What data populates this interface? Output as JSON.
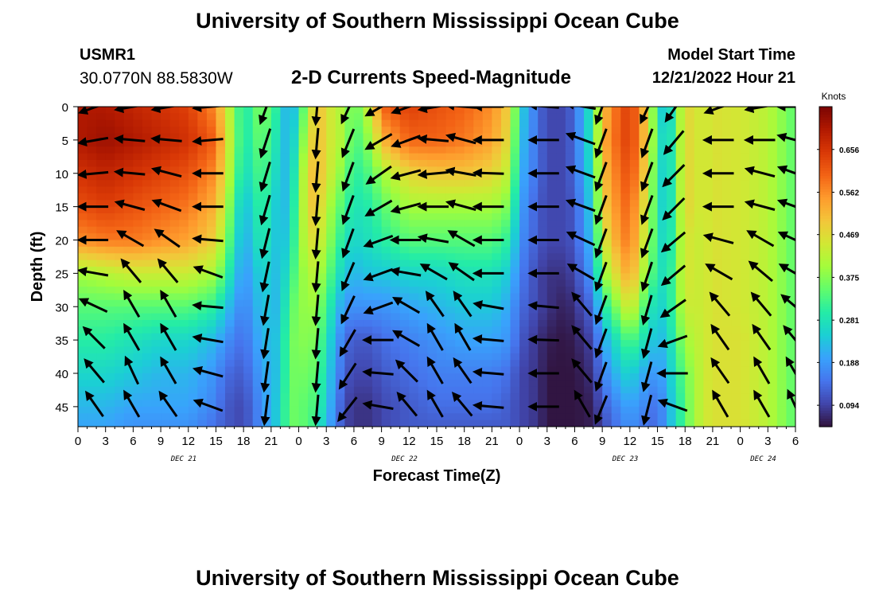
{
  "header": {
    "title": "University of Southern Mississippi Ocean Cube",
    "station": "USMR1",
    "coordinates": "30.0770N  88.5830W",
    "subtitle": "2-D Currents Speed-Magnitude",
    "model_start_label": "Model Start Time",
    "model_start_value": "12/21/2022 Hour 21"
  },
  "footer": {
    "title": "University of Southern Mississippi Ocean Cube"
  },
  "chart_data": {
    "type": "heatmap",
    "xlabel": "Forecast Time(Z)",
    "ylabel": "Depth (ft)",
    "x_ticks": [
      "0",
      "3",
      "6",
      "9",
      "12",
      "15",
      "18",
      "21",
      "0",
      "3",
      "6",
      "9",
      "12",
      "15",
      "18",
      "21",
      "0",
      "3",
      "6",
      "9",
      "12",
      "15",
      "18",
      "21",
      "0",
      "3",
      "6"
    ],
    "x_tick_hours": [
      0,
      3,
      6,
      9,
      12,
      15,
      18,
      21,
      24,
      27,
      30,
      33,
      36,
      39,
      42,
      45,
      48,
      51,
      54,
      57,
      60,
      63,
      66,
      69,
      72,
      75,
      78
    ],
    "xlim_hours": [
      0,
      78
    ],
    "date_labels": [
      {
        "label": "DEC 21",
        "hour": 11.5
      },
      {
        "label": "DEC 22",
        "hour": 35.5
      },
      {
        "label": "DEC 23",
        "hour": 59.5
      },
      {
        "label": "DEC 24",
        "hour": 74.5
      }
    ],
    "y_ticks": [
      0,
      5,
      10,
      15,
      20,
      25,
      30,
      35,
      40,
      45
    ],
    "ylim": [
      0,
      48
    ],
    "y_inverted": true,
    "colorbar": {
      "title": "Knots",
      "range": [
        0.047,
        0.75
      ],
      "ticks": [
        0.094,
        0.188,
        0.281,
        0.375,
        0.469,
        0.562,
        0.656
      ],
      "tick_labels": [
        "0.094",
        "0.188",
        "0.281",
        "0.375",
        "0.469",
        "0.562",
        "0.656"
      ]
    },
    "colormap": [
      "#30123b",
      "#4145ab",
      "#4675ed",
      "#39a2fc",
      "#1bcfd4",
      "#24eca6",
      "#61fc6c",
      "#a4fc3b",
      "#d1e834",
      "#f3c63a",
      "#fe9b2d",
      "#f36315",
      "#d93806",
      "#b11901",
      "#7a0403"
    ],
    "speed_field": {
      "hours": [
        0,
        3,
        6,
        9,
        12,
        15,
        16,
        18,
        20,
        22,
        23,
        25,
        26,
        27,
        29,
        30,
        32,
        33,
        36,
        39,
        42,
        45,
        47,
        48,
        50,
        51,
        53,
        54,
        56,
        57,
        59,
        60,
        61,
        62,
        63,
        64,
        66,
        67,
        68,
        69,
        72,
        75,
        78
      ],
      "depths": [
        0,
        5,
        10,
        15,
        20,
        25,
        30,
        35,
        40,
        45,
        48
      ],
      "values": [
        [
          0.7,
          0.7,
          0.68,
          0.66,
          0.64,
          0.56,
          0.46,
          0.28,
          0.38,
          0.28,
          0.18,
          0.4,
          0.52,
          0.46,
          0.4,
          0.34,
          0.46,
          0.6,
          0.64,
          0.62,
          0.6,
          0.56,
          0.48,
          0.26,
          0.14,
          0.1,
          0.1,
          0.14,
          0.3,
          0.5,
          0.62,
          0.64,
          0.58,
          0.46,
          0.3,
          0.2,
          0.48,
          0.46,
          0.44,
          0.46,
          0.45,
          0.42,
          0.34
        ],
        [
          0.7,
          0.72,
          0.7,
          0.68,
          0.66,
          0.6,
          0.48,
          0.28,
          0.36,
          0.26,
          0.2,
          0.44,
          0.52,
          0.46,
          0.4,
          0.32,
          0.4,
          0.52,
          0.6,
          0.6,
          0.58,
          0.54,
          0.46,
          0.24,
          0.14,
          0.1,
          0.1,
          0.14,
          0.3,
          0.52,
          0.62,
          0.64,
          0.58,
          0.46,
          0.32,
          0.22,
          0.48,
          0.46,
          0.44,
          0.46,
          0.45,
          0.42,
          0.34
        ],
        [
          0.66,
          0.68,
          0.66,
          0.64,
          0.62,
          0.56,
          0.46,
          0.26,
          0.34,
          0.24,
          0.22,
          0.48,
          0.52,
          0.46,
          0.36,
          0.3,
          0.34,
          0.4,
          0.48,
          0.5,
          0.5,
          0.48,
          0.42,
          0.22,
          0.14,
          0.1,
          0.1,
          0.14,
          0.28,
          0.5,
          0.6,
          0.62,
          0.56,
          0.44,
          0.3,
          0.22,
          0.48,
          0.46,
          0.44,
          0.46,
          0.45,
          0.42,
          0.34
        ],
        [
          0.62,
          0.64,
          0.62,
          0.6,
          0.58,
          0.52,
          0.42,
          0.22,
          0.32,
          0.22,
          0.24,
          0.48,
          0.5,
          0.42,
          0.32,
          0.28,
          0.3,
          0.34,
          0.4,
          0.4,
          0.4,
          0.4,
          0.36,
          0.2,
          0.12,
          0.1,
          0.1,
          0.12,
          0.26,
          0.48,
          0.58,
          0.6,
          0.52,
          0.42,
          0.3,
          0.22,
          0.48,
          0.46,
          0.44,
          0.46,
          0.45,
          0.42,
          0.34
        ],
        [
          0.56,
          0.58,
          0.58,
          0.56,
          0.54,
          0.48,
          0.38,
          0.2,
          0.3,
          0.22,
          0.26,
          0.46,
          0.46,
          0.4,
          0.28,
          0.26,
          0.28,
          0.3,
          0.34,
          0.34,
          0.34,
          0.34,
          0.3,
          0.18,
          0.12,
          0.1,
          0.1,
          0.12,
          0.24,
          0.44,
          0.56,
          0.58,
          0.5,
          0.4,
          0.3,
          0.24,
          0.46,
          0.44,
          0.44,
          0.46,
          0.45,
          0.42,
          0.34
        ],
        [
          0.4,
          0.42,
          0.44,
          0.44,
          0.44,
          0.4,
          0.32,
          0.18,
          0.26,
          0.22,
          0.3,
          0.42,
          0.42,
          0.36,
          0.24,
          0.22,
          0.24,
          0.24,
          0.26,
          0.26,
          0.28,
          0.28,
          0.24,
          0.16,
          0.1,
          0.08,
          0.08,
          0.1,
          0.2,
          0.38,
          0.5,
          0.54,
          0.46,
          0.36,
          0.3,
          0.26,
          0.46,
          0.44,
          0.44,
          0.46,
          0.45,
          0.42,
          0.34
        ],
        [
          0.34,
          0.34,
          0.34,
          0.34,
          0.34,
          0.3,
          0.24,
          0.16,
          0.24,
          0.22,
          0.34,
          0.4,
          0.38,
          0.32,
          0.18,
          0.18,
          0.18,
          0.18,
          0.2,
          0.22,
          0.24,
          0.24,
          0.2,
          0.14,
          0.1,
          0.08,
          0.06,
          0.08,
          0.14,
          0.28,
          0.4,
          0.46,
          0.38,
          0.3,
          0.26,
          0.26,
          0.44,
          0.44,
          0.44,
          0.46,
          0.45,
          0.42,
          0.34
        ],
        [
          0.3,
          0.3,
          0.28,
          0.26,
          0.26,
          0.22,
          0.18,
          0.14,
          0.22,
          0.24,
          0.36,
          0.38,
          0.36,
          0.28,
          0.14,
          0.12,
          0.12,
          0.14,
          0.16,
          0.18,
          0.2,
          0.2,
          0.18,
          0.12,
          0.08,
          0.06,
          0.05,
          0.06,
          0.1,
          0.2,
          0.3,
          0.34,
          0.3,
          0.26,
          0.22,
          0.24,
          0.4,
          0.42,
          0.44,
          0.46,
          0.46,
          0.42,
          0.34
        ],
        [
          0.26,
          0.26,
          0.24,
          0.22,
          0.22,
          0.18,
          0.14,
          0.12,
          0.2,
          0.24,
          0.36,
          0.36,
          0.34,
          0.26,
          0.12,
          0.1,
          0.1,
          0.12,
          0.14,
          0.16,
          0.16,
          0.16,
          0.14,
          0.1,
          0.08,
          0.05,
          0.05,
          0.05,
          0.08,
          0.16,
          0.24,
          0.26,
          0.22,
          0.2,
          0.18,
          0.22,
          0.36,
          0.4,
          0.44,
          0.46,
          0.46,
          0.42,
          0.34
        ],
        [
          0.22,
          0.22,
          0.2,
          0.2,
          0.2,
          0.16,
          0.12,
          0.1,
          0.18,
          0.26,
          0.36,
          0.34,
          0.32,
          0.24,
          0.1,
          0.08,
          0.08,
          0.1,
          0.12,
          0.14,
          0.14,
          0.14,
          0.12,
          0.1,
          0.08,
          0.05,
          0.05,
          0.05,
          0.06,
          0.12,
          0.18,
          0.2,
          0.18,
          0.16,
          0.14,
          0.2,
          0.34,
          0.4,
          0.44,
          0.46,
          0.46,
          0.42,
          0.34
        ],
        [
          0.2,
          0.2,
          0.18,
          0.18,
          0.18,
          0.14,
          0.12,
          0.1,
          0.18,
          0.26,
          0.36,
          0.34,
          0.3,
          0.22,
          0.1,
          0.08,
          0.08,
          0.1,
          0.12,
          0.12,
          0.12,
          0.12,
          0.12,
          0.1,
          0.08,
          0.05,
          0.05,
          0.05,
          0.06,
          0.1,
          0.16,
          0.18,
          0.16,
          0.14,
          0.14,
          0.2,
          0.34,
          0.4,
          0.44,
          0.46,
          0.46,
          0.42,
          0.34
        ]
      ]
    },
    "vector_field": {
      "hours": [
        2,
        6,
        10,
        14.5,
        20.5,
        26,
        29.5,
        33,
        36,
        39,
        42,
        45,
        51,
        55,
        57,
        62,
        65,
        70,
        74.5,
        78
      ],
      "depths": [
        0,
        5,
        10,
        15,
        20,
        25,
        30,
        35,
        40,
        45
      ],
      "direction_deg": [
        [
          250,
          260,
          260,
          265,
          200,
          185,
          205,
          240,
          250,
          260,
          275,
          270,
          275,
          280,
          200,
          205,
          215,
          250,
          260,
          270
        ],
        [
          260,
          275,
          275,
          265,
          198,
          185,
          202,
          240,
          250,
          275,
          285,
          270,
          270,
          290,
          200,
          200,
          220,
          270,
          270,
          285
        ],
        [
          265,
          275,
          285,
          270,
          197,
          185,
          200,
          235,
          255,
          265,
          280,
          272,
          270,
          290,
          200,
          200,
          225,
          270,
          285,
          290
        ],
        [
          270,
          285,
          290,
          270,
          196,
          185,
          200,
          240,
          255,
          270,
          285,
          270,
          270,
          290,
          200,
          200,
          225,
          270,
          285,
          290
        ],
        [
          270,
          300,
          305,
          275,
          194,
          185,
          200,
          250,
          270,
          280,
          300,
          270,
          270,
          295,
          200,
          200,
          230,
          285,
          300,
          295
        ],
        [
          280,
          320,
          320,
          290,
          192,
          185,
          203,
          250,
          280,
          300,
          305,
          270,
          270,
          300,
          200,
          198,
          230,
          300,
          310,
          300
        ],
        [
          295,
          330,
          330,
          275,
          190,
          185,
          205,
          250,
          300,
          325,
          325,
          280,
          275,
          320,
          200,
          196,
          235,
          320,
          320,
          310
        ],
        [
          315,
          330,
          330,
          280,
          189,
          185,
          210,
          270,
          300,
          330,
          330,
          275,
          272,
          320,
          200,
          195,
          250,
          325,
          325,
          320
        ],
        [
          320,
          335,
          330,
          285,
          188,
          185,
          213,
          275,
          315,
          330,
          325,
          275,
          270,
          320,
          200,
          195,
          270,
          325,
          330,
          330
        ],
        [
          325,
          330,
          325,
          290,
          187,
          185,
          218,
          280,
          320,
          330,
          320,
          275,
          270,
          330,
          202,
          194,
          290,
          330,
          330,
          335
        ]
      ]
    }
  }
}
